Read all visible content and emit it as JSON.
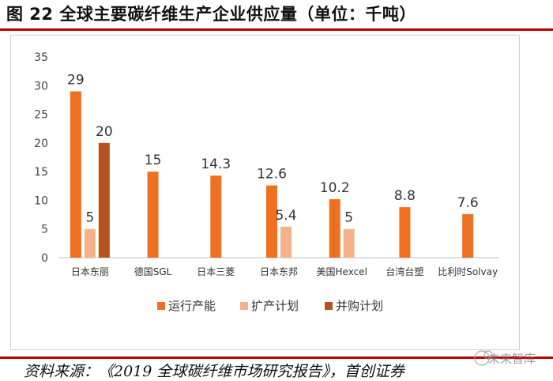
{
  "figure": {
    "title": "图 22 全球主要碳纤维生产企业供应量（单位：千吨）",
    "source": "资料来源：《2019 全球碳纤维市场研究报告》，首创证券",
    "watermark": "未来智库"
  },
  "colors": {
    "rule": "#c00000",
    "running": "#f07021",
    "expansion": "#f5b28a",
    "acquisition": "#b5531f"
  },
  "chart_data": {
    "type": "bar",
    "title": "全球主要碳纤维生产企业供应量（单位：千吨）",
    "xlabel": "",
    "ylabel": "",
    "ylim": [
      0,
      35
    ],
    "yticks": [
      0,
      5,
      10,
      15,
      20,
      25,
      30,
      35
    ],
    "grid": false,
    "legend_position": "bottom",
    "categories": [
      "日本东丽",
      "德国SGL",
      "日本三菱",
      "日本东邦",
      "美国Hexcel",
      "台湾台塑",
      "比利时Solvay"
    ],
    "series": [
      {
        "name": "运行产能",
        "color": "#f07021",
        "values": [
          29,
          15,
          14.3,
          12.6,
          10.2,
          8.8,
          7.6
        ]
      },
      {
        "name": "扩产计划",
        "color": "#f5b28a",
        "values": [
          5,
          null,
          null,
          5.4,
          5,
          null,
          null
        ]
      },
      {
        "name": "并购计划",
        "color": "#b5531f",
        "values": [
          20,
          null,
          null,
          null,
          null,
          null,
          null
        ]
      }
    ]
  }
}
